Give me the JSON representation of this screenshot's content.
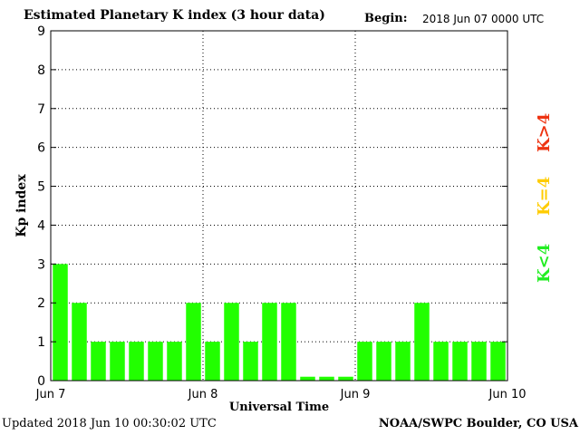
{
  "header": {
    "title": "Estimated Planetary K index (3 hour data)",
    "begin_label": "Begin:",
    "begin_value": "2018 Jun 07 0000 UTC"
  },
  "footer": {
    "updated": "Updated 2018 Jun 10 00:30:02 UTC",
    "credit": "NOAA/SWPC Boulder, CO USA"
  },
  "legend": {
    "below": {
      "text": "K<4",
      "color": "#22ee22"
    },
    "equal": {
      "text": "K=4",
      "color": "#ffcc00"
    },
    "above": {
      "text": "K>4",
      "color": "#ee3311"
    }
  },
  "chart_data": {
    "type": "bar",
    "title": "Estimated Planetary K index (3 hour data)",
    "xlabel": "Universal Time",
    "ylabel": "Kp index",
    "ylim": [
      0,
      9
    ],
    "yticks": [
      0,
      1,
      2,
      3,
      4,
      5,
      6,
      7,
      8,
      9
    ],
    "x_tick_labels": [
      "Jun 7",
      "Jun 8",
      "Jun 9",
      "Jun 10"
    ],
    "grid": true,
    "bar_color": "#22ff00",
    "series": [
      {
        "values": [
          3,
          2,
          1,
          1,
          1,
          1,
          1,
          2,
          1,
          2,
          1,
          2,
          2,
          0.1,
          0.1,
          0.1,
          1,
          1,
          1,
          2,
          1,
          1,
          1,
          1
        ]
      }
    ]
  }
}
